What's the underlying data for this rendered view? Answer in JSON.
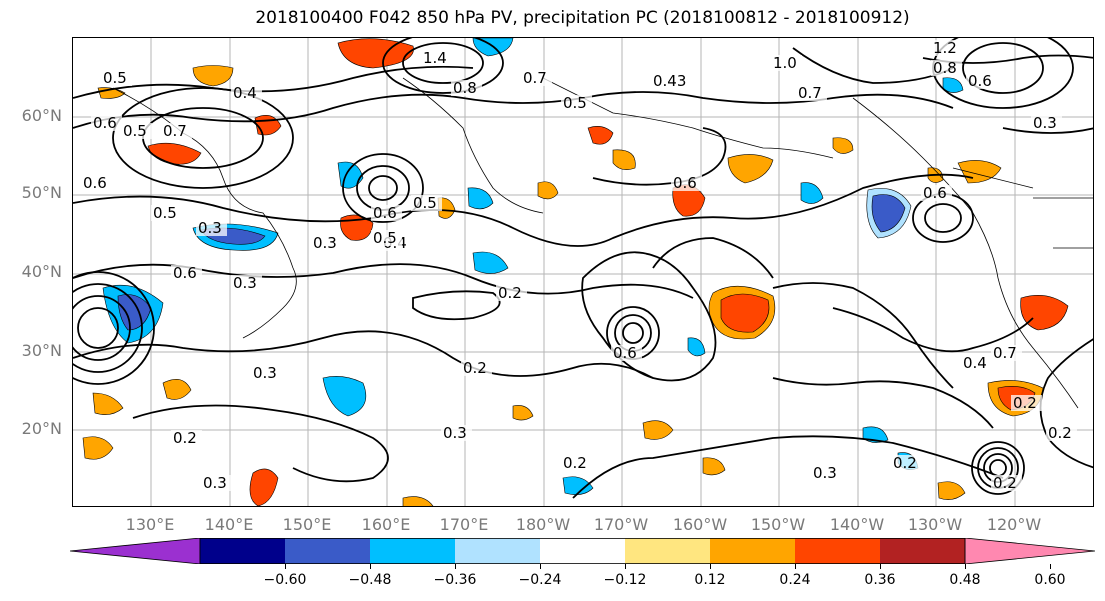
{
  "title": "2018100400 F042 850 hPa PV, precipitation PC (2018100812 - 2018100912)",
  "lat_labels": [
    "60°N",
    "50°N",
    "40°N",
    "30°N",
    "20°N"
  ],
  "lon_labels": [
    "130°E",
    "140°E",
    "150°E",
    "160°E",
    "170°E",
    "180°W",
    "170°W",
    "160°W",
    "150°W",
    "140°W",
    "130°W",
    "120°W"
  ],
  "colorbar": {
    "ticks": [
      "−0.60",
      "−0.48",
      "−0.36",
      "−0.24",
      "−0.12",
      "0.12",
      "0.24",
      "0.36",
      "0.48",
      "0.60"
    ],
    "colors": [
      "#9b30d0",
      "#00008b",
      "#3a5bc8",
      "#00bfff",
      "#b0e2ff",
      "#ffffff",
      "#ffe680",
      "#ffa500",
      "#ff4500",
      "#b22222",
      "#ff88b0"
    ]
  },
  "contour_labels": [
    "0.5",
    "0.6",
    "1.4",
    "0.8",
    "0.7",
    "0.5",
    "0.43",
    "1.0",
    "1.2",
    "0.8",
    "0.6",
    "0.7",
    "0.3",
    "0.4",
    "0.5",
    "0.7",
    "0.6",
    "0.3",
    "0.6",
    "0.5",
    "0.4",
    "0.3",
    "0.5",
    "0.3",
    "0.6",
    "0.3",
    "0.2",
    "0.3",
    "0.3",
    "0.2",
    "0.2",
    "0.3",
    "0.2",
    "0.6",
    "0.2",
    "0.6",
    "0.7",
    "0.4",
    "0.5",
    "0.6",
    "0.2",
    "0.2",
    "0.2"
  ]
}
